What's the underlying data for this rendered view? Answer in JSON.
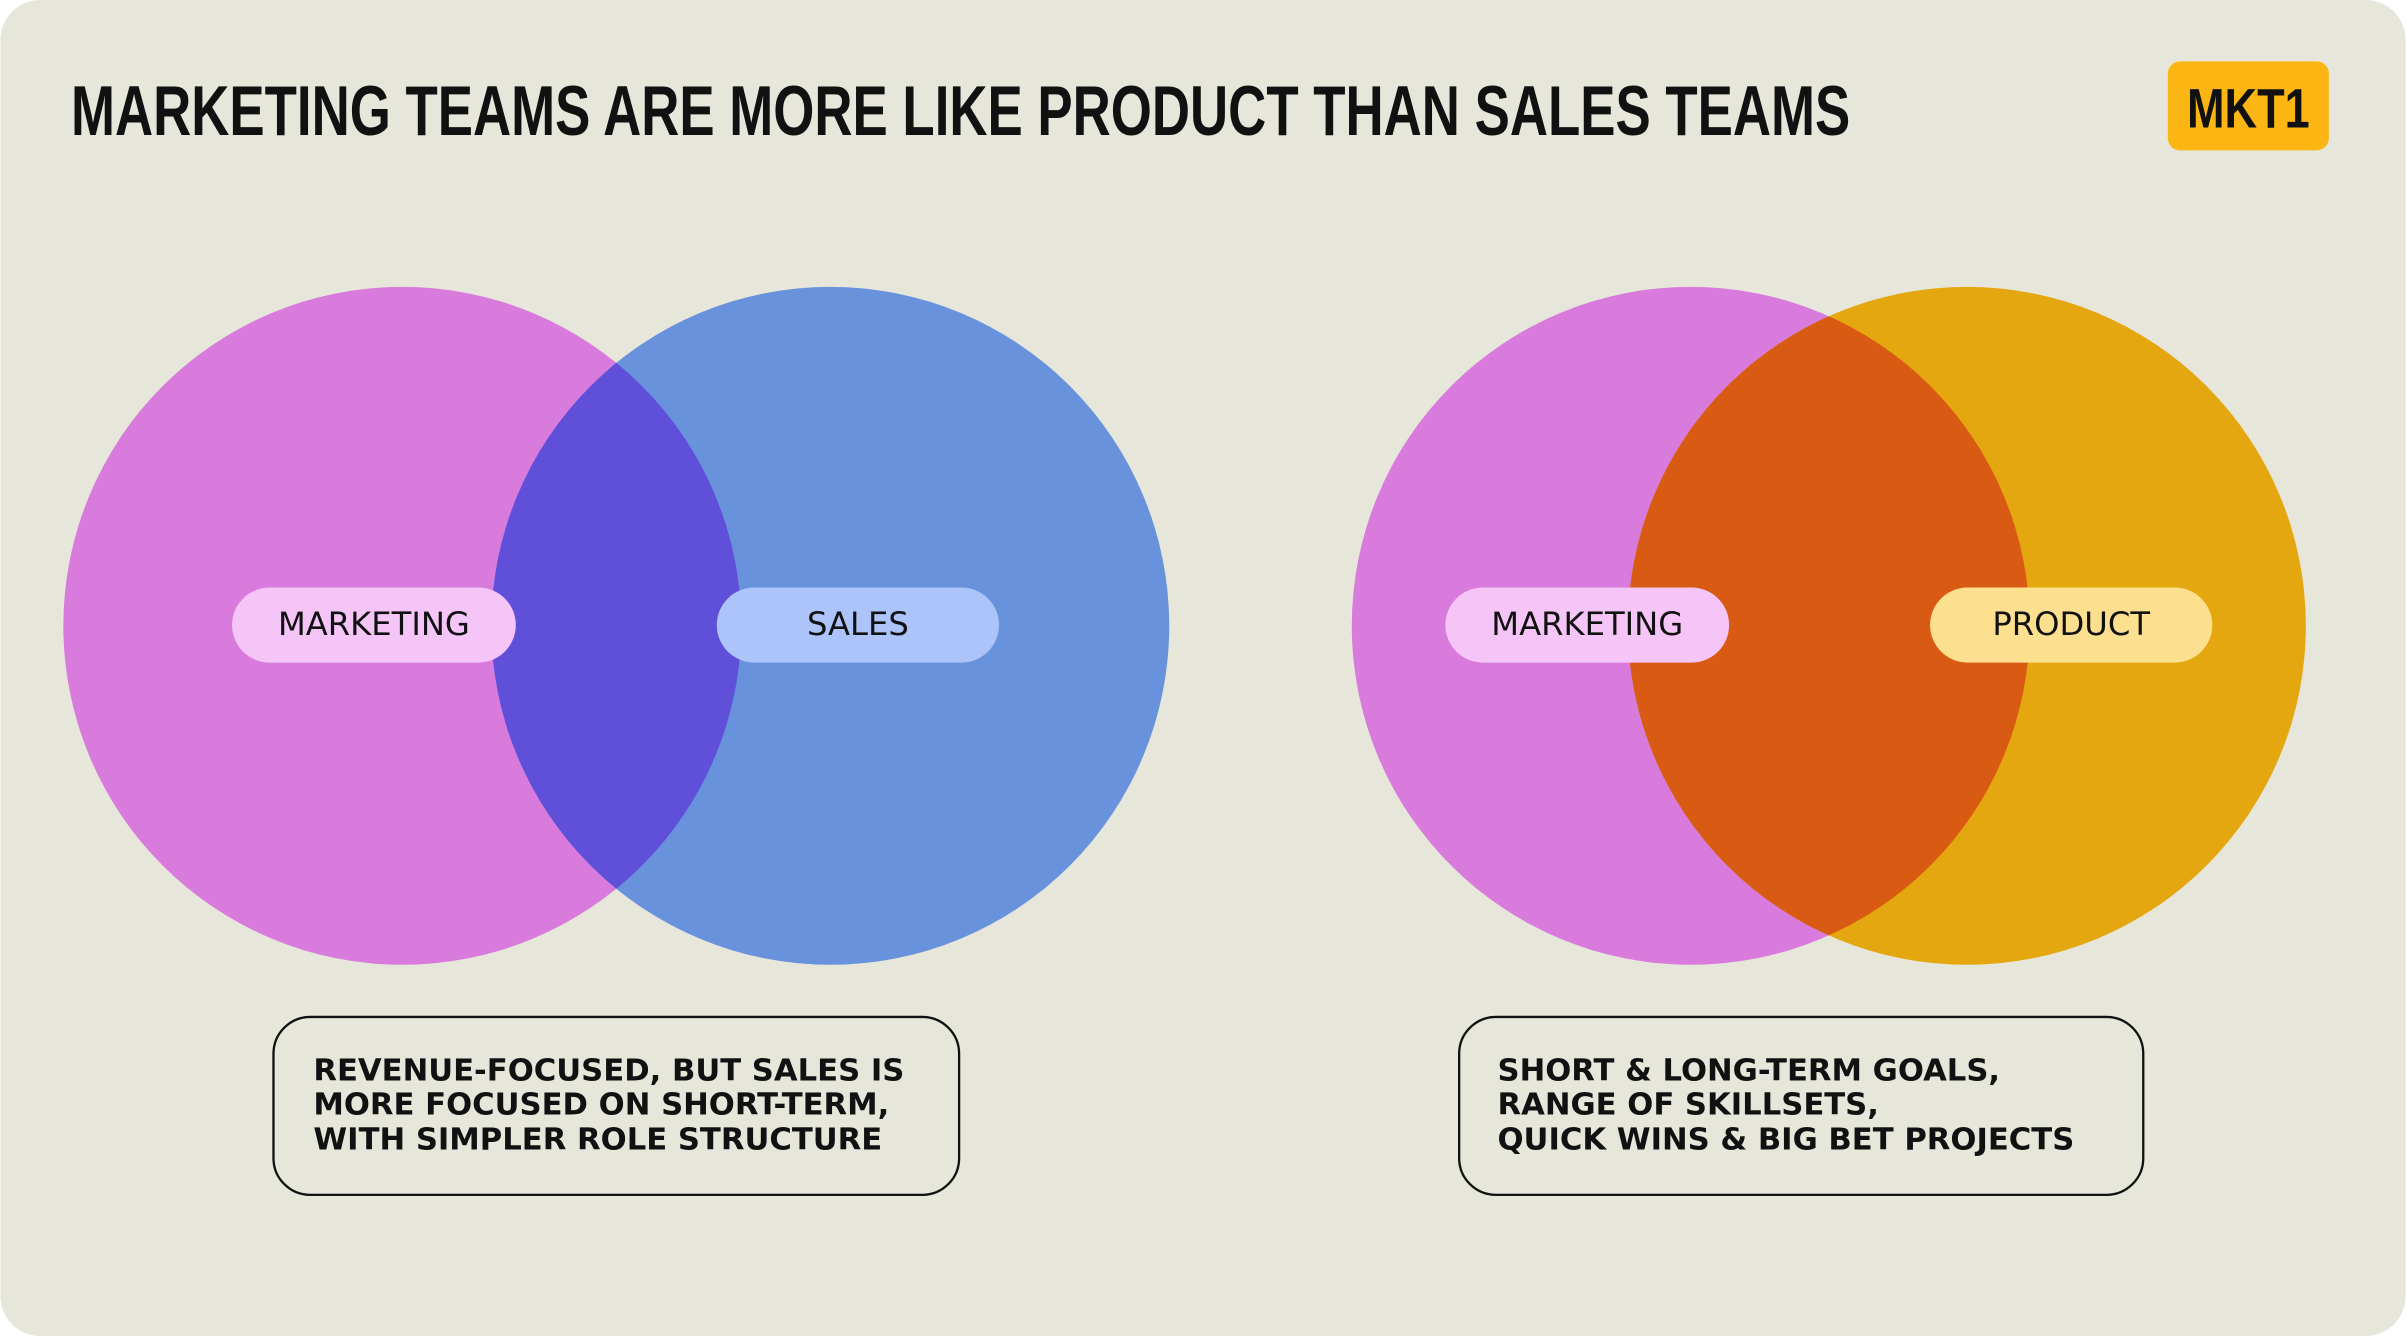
{
  "header": {
    "title": "MARKETING TEAMS ARE MORE LIKE PRODUCT THAN SALES TEAMS",
    "logo": "MKT1"
  },
  "diagrams": [
    {
      "left_label": "MARKETING",
      "right_label": "SALES",
      "caption": [
        "REVENUE-FOCUSED, BUT SALES IS",
        "MORE FOCUSED ON SHORT-TERM,",
        "WITH SIMPLER ROLE STRUCTURE"
      ]
    },
    {
      "left_label": "MARKETING",
      "right_label": "PRODUCT",
      "caption": [
        "SHORT & LONG-TERM GOALS,",
        "RANGE OF SKILLSETS,",
        "QUICK WINS & BIG BET PROJECTS"
      ]
    }
  ]
}
